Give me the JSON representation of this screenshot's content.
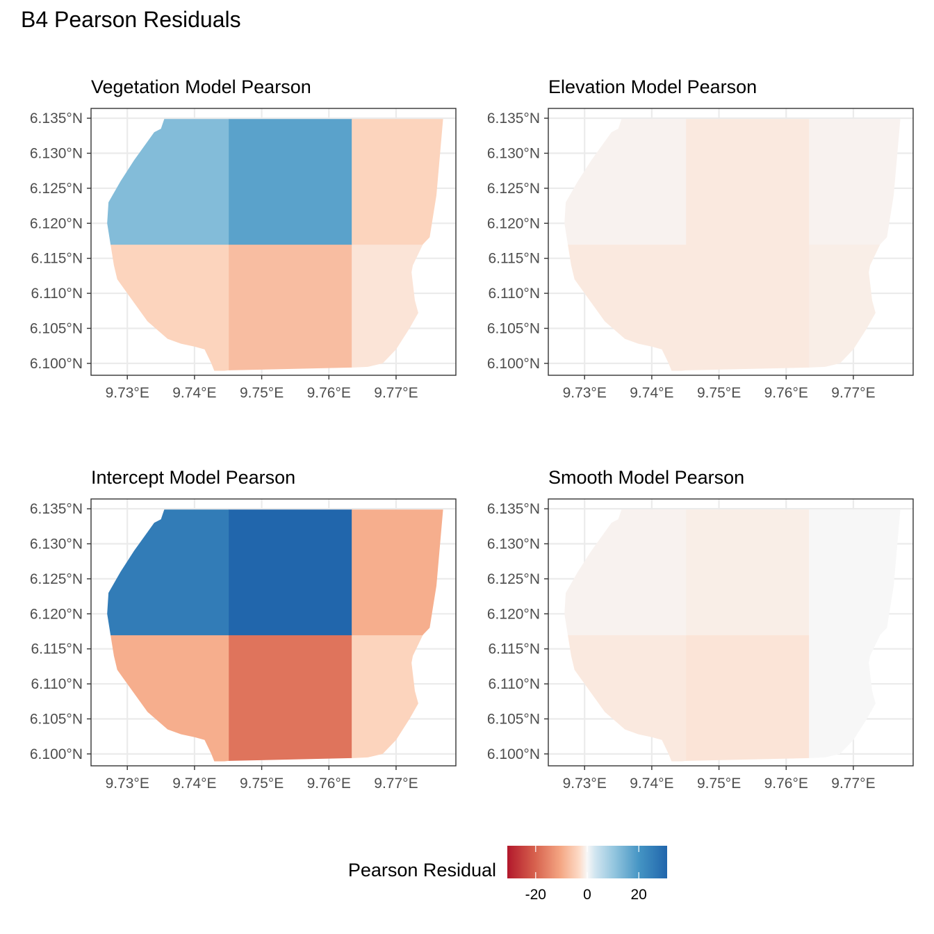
{
  "page_title": "B4 Pearson Residuals",
  "colors": {
    "low": "#b2182b",
    "mid": "#f7f7f7",
    "high": "#2166ac"
  },
  "chart_data": {
    "type": "heatmap",
    "x_ticks": [
      "9.73°E",
      "9.74°E",
      "9.75°E",
      "9.76°E",
      "9.77°E"
    ],
    "x_tick_values": [
      9.73,
      9.74,
      9.75,
      9.76,
      9.77
    ],
    "y_ticks": [
      "6.135°N",
      "6.130°N",
      "6.125°N",
      "6.120°N",
      "6.115°N",
      "6.110°N",
      "6.105°N",
      "6.100°N"
    ],
    "y_tick_values": [
      6.135,
      6.13,
      6.125,
      6.12,
      6.115,
      6.11,
      6.105,
      6.1
    ],
    "xlim": [
      9.7246,
      9.7789
    ],
    "ylim": [
      6.0983,
      6.1364
    ],
    "col_edges": [
      9.7245,
      9.7451,
      9.7634,
      9.777
    ],
    "row_edges": [
      6.099,
      6.117,
      6.1349
    ],
    "boundary": [
      [
        9.7355,
        6.1349
      ],
      [
        9.777,
        6.1349
      ],
      [
        9.776,
        6.124
      ],
      [
        9.775,
        6.118
      ],
      [
        9.774,
        6.117
      ],
      [
        9.7725,
        6.114
      ],
      [
        9.7723,
        6.113
      ],
      [
        9.7728,
        6.109
      ],
      [
        9.7733,
        6.1072
      ],
      [
        9.772,
        6.105
      ],
      [
        9.77,
        6.102
      ],
      [
        9.768,
        6.1
      ],
      [
        9.7658,
        6.0995
      ],
      [
        9.7634,
        6.0994
      ],
      [
        9.7451,
        6.099
      ],
      [
        9.743,
        6.0988
      ],
      [
        9.7425,
        6.1
      ],
      [
        9.7415,
        6.102
      ],
      [
        9.74,
        6.1024
      ],
      [
        9.738,
        6.1028
      ],
      [
        9.736,
        6.1035
      ],
      [
        9.733,
        6.106
      ],
      [
        9.73,
        6.11
      ],
      [
        9.7285,
        6.112
      ],
      [
        9.728,
        6.114
      ],
      [
        9.7275,
        6.117
      ],
      [
        9.727,
        6.12
      ],
      [
        9.7272,
        6.123
      ],
      [
        9.729,
        6.126
      ],
      [
        9.731,
        6.129
      ],
      [
        9.734,
        6.133
      ],
      [
        9.735,
        6.1335
      ]
    ],
    "color_limits": [
      -30,
      30
    ],
    "panels": [
      {
        "title": "Vegetation Model Pearson",
        "values": [
          [
            -4,
            -7,
            -2
          ],
          [
            12,
            17,
            -4
          ]
        ]
      },
      {
        "title": "Elevation Model Pearson",
        "values": [
          [
            -1.5,
            -1.5,
            -1
          ],
          [
            -0.5,
            -1.5,
            -0.5
          ]
        ]
      },
      {
        "title": "Intercept Model Pearson",
        "values": [
          [
            -9,
            -17,
            -4
          ],
          [
            25,
            31,
            -9
          ]
        ]
      },
      {
        "title": "Smooth Model Pearson",
        "values": [
          [
            -1.5,
            -2,
            0
          ],
          [
            -0.5,
            -1,
            0
          ]
        ]
      }
    ],
    "legend": {
      "title": "Pearson Residual",
      "ticks": [
        "-20",
        "0",
        "20"
      ],
      "tick_values": [
        -20,
        0,
        20
      ],
      "range": [
        -31,
        31
      ]
    }
  }
}
